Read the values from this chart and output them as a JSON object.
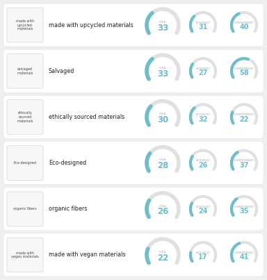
{
  "rows": [
    {
      "icon_label": "made with\nupcycled\nmaterials",
      "label": "made with upcycled materials",
      "idea": 33,
      "interest": 31,
      "commitment": 40
    },
    {
      "icon_label": "salvaged\nmaterials",
      "label": "Salvaged",
      "idea": 33,
      "interest": 27,
      "commitment": 58
    },
    {
      "icon_label": "ethically\nsourced\nmaterials",
      "label": "ethically sourced materials",
      "idea": 30,
      "interest": 32,
      "commitment": 22
    },
    {
      "icon_label": "Eco-designed",
      "label": "Eco-designed",
      "idea": 28,
      "interest": 26,
      "commitment": 37
    },
    {
      "icon_label": "organic fibers",
      "label": "organic fibers",
      "idea": 26,
      "interest": 24,
      "commitment": 35
    },
    {
      "icon_label": "made with\nvegan materials",
      "label": "made with vegan materials",
      "idea": 22,
      "interest": 17,
      "commitment": 41
    }
  ],
  "bg_color": "#efefef",
  "card_color": "#ffffff",
  "arc_bg_color": "#e0e0e0",
  "arc_fg_color": "#6bbfcc",
  "label_color": "#222222",
  "icon_label_color": "#444444",
  "number_color": "#6bbfcc",
  "metric_label_color": "#aaaaaa"
}
